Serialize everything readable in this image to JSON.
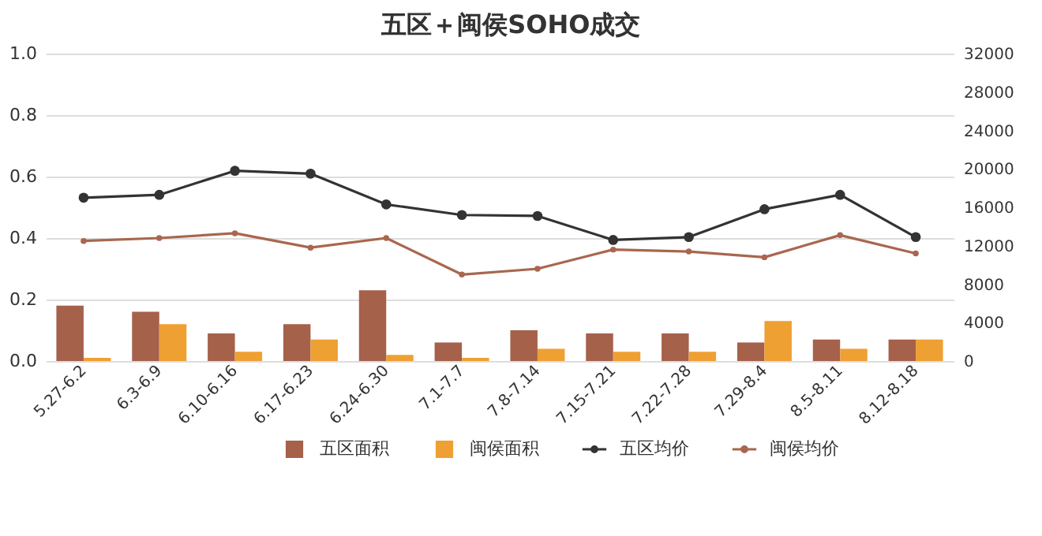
{
  "chart_data": {
    "type": "bar",
    "title": "五区＋闽侯SOHO成交",
    "categories": [
      "5.27-6.2",
      "6.3-6.9",
      "6.10-6.16",
      "6.17-6.23",
      "6.24-6.30",
      "7.1-7.7",
      "7.8-7.14",
      "7.15-7.21",
      "7.22-7.28",
      "7.29-8.4",
      "8.5-8.11",
      "8.12-8.18"
    ],
    "series": [
      {
        "name": "五区面积",
        "color": "#a5614a",
        "values": [
          0.18,
          0.16,
          0.09,
          0.12,
          0.23,
          0.06,
          0.1,
          0.09,
          0.09,
          0.06,
          0.07,
          0.07
        ]
      },
      {
        "name": "闽侯面积",
        "color": "#eea032",
        "values": [
          0.01,
          0.12,
          0.03,
          0.07,
          0.02,
          0.01,
          0.04,
          0.03,
          0.03,
          0.13,
          0.04,
          0.07
        ]
      },
      {
        "name": "五区均价",
        "type": "line",
        "axis": "y2",
        "marker": "circle",
        "color": "#333333",
        "values": [
          17000,
          17300,
          19800,
          19500,
          16300,
          15200,
          15100,
          12600,
          12900,
          15800,
          17300,
          12900
        ]
      },
      {
        "name": "闽侯均价",
        "type": "line",
        "axis": "y2",
        "marker": "circle",
        "color": "#a8674e",
        "values": [
          12500,
          12800,
          13300,
          11800,
          12800,
          9000,
          9600,
          11600,
          11400,
          10800,
          13100,
          11200
        ]
      }
    ],
    "ylim": [
      0,
      1
    ],
    "yticks": [
      {
        "value": 0,
        "label": "0.0"
      },
      0.2,
      0.4,
      0.6,
      0.8,
      {
        "value": 1,
        "label": "1.0"
      }
    ],
    "y2lim": [
      0,
      32000
    ],
    "y2ticks": [
      0,
      4000,
      8000,
      12000,
      16000,
      20000,
      24000,
      28000,
      32000
    ],
    "grid": "y",
    "legend": "bottom"
  }
}
